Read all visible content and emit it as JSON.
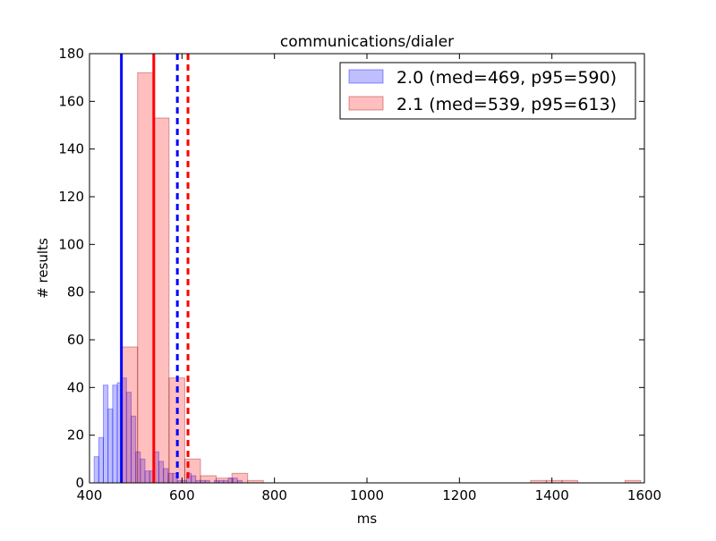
{
  "chart_data": {
    "type": "bar",
    "title": "communications/dialer",
    "xlabel": "ms",
    "ylabel": "# results",
    "xlim": [
      400,
      1600
    ],
    "ylim": [
      0,
      180
    ],
    "xticks": [
      400,
      600,
      800,
      1000,
      1200,
      1400,
      1600
    ],
    "yticks": [
      0,
      20,
      40,
      60,
      80,
      100,
      120,
      140,
      160,
      180
    ],
    "grid": false,
    "legend_position": "top-right",
    "series": [
      {
        "name": "2.0 (med=469, p95=590)",
        "color": "#0000ff",
        "bin_width": 10,
        "bin_starts": [
          410,
          420,
          430,
          440,
          450,
          460,
          470,
          480,
          490,
          500,
          510,
          520,
          530,
          540,
          550,
          560,
          570,
          580,
          590,
          600,
          610,
          620,
          630,
          640,
          650,
          660,
          670,
          680,
          690,
          700,
          710,
          720
        ],
        "counts": [
          11,
          19,
          41,
          31,
          41,
          42,
          44,
          38,
          28,
          13,
          10,
          5,
          5,
          13,
          9,
          6,
          4,
          4,
          1,
          1,
          4,
          3,
          1,
          1,
          1,
          0,
          1,
          1,
          1,
          2,
          2,
          1
        ],
        "median": 469,
        "p95": 590
      },
      {
        "name": "2.1 (med=539, p95=613)",
        "color": "#ff0000",
        "bin_width": 34,
        "bin_starts": [
          470,
          504,
          538,
          572,
          606,
          640,
          674,
          708,
          742,
          1354,
          1388,
          1422,
          1558
        ],
        "counts": [
          57,
          172,
          153,
          44,
          10,
          3,
          2,
          4,
          1,
          1,
          1,
          1,
          1
        ],
        "median": 539,
        "p95": 613
      }
    ]
  }
}
